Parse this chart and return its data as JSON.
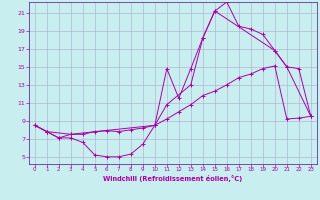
{
  "xlabel": "Windchill (Refroidissement éolien,°C)",
  "bg_color": "#c8eef0",
  "grid_color": "#aaaacc",
  "line_color": "#aa00aa",
  "spine_color": "#6633aa",
  "xlim": [
    -0.5,
    23.5
  ],
  "ylim": [
    4.2,
    22.2
  ],
  "xticks": [
    0,
    1,
    2,
    3,
    4,
    5,
    6,
    7,
    8,
    9,
    10,
    11,
    12,
    13,
    14,
    15,
    16,
    17,
    18,
    19,
    20,
    21,
    22,
    23
  ],
  "yticks": [
    5,
    7,
    9,
    11,
    13,
    15,
    17,
    19,
    21
  ],
  "line1_x": [
    0,
    1,
    2,
    3,
    4,
    5,
    6,
    7,
    8,
    9,
    10,
    11,
    12,
    13,
    14,
    15,
    16,
    17,
    18,
    19,
    20,
    21,
    22,
    23
  ],
  "line1_y": [
    8.5,
    7.8,
    7.1,
    7.1,
    6.6,
    5.2,
    5.0,
    5.0,
    5.3,
    6.4,
    8.5,
    14.8,
    11.5,
    14.8,
    18.2,
    21.2,
    22.2,
    19.5,
    19.2,
    18.6,
    16.8,
    15.0,
    14.8,
    9.5
  ],
  "line2_x": [
    0,
    1,
    2,
    3,
    4,
    5,
    6,
    7,
    8,
    9,
    10,
    11,
    12,
    13,
    14,
    15,
    16,
    17,
    18,
    19,
    20,
    21,
    22,
    23
  ],
  "line2_y": [
    8.5,
    7.8,
    7.1,
    7.5,
    7.5,
    7.8,
    7.9,
    7.8,
    8.0,
    8.2,
    8.5,
    9.2,
    10.0,
    10.8,
    11.8,
    12.3,
    13.0,
    13.8,
    14.2,
    14.8,
    15.1,
    9.2,
    9.3,
    9.5
  ],
  "line3_x": [
    0,
    1,
    3,
    10,
    11,
    13,
    14,
    15,
    20,
    21,
    23
  ],
  "line3_y": [
    8.5,
    7.8,
    7.5,
    8.5,
    10.8,
    13.0,
    18.2,
    21.2,
    16.8,
    15.0,
    9.5
  ]
}
